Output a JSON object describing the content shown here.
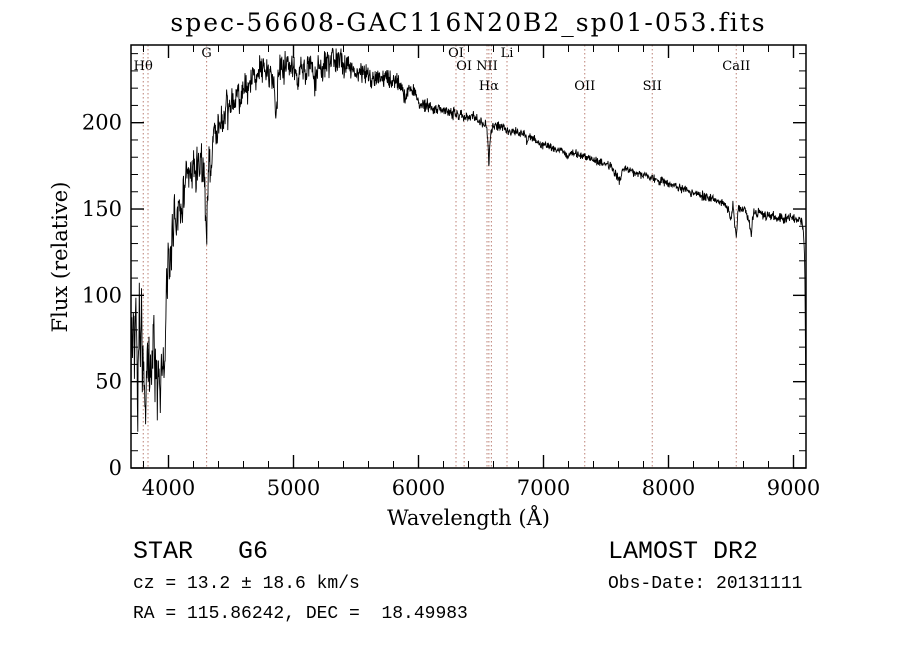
{
  "title": "spec-56608-GAC116N20B2_sp01-053.fits",
  "footer": {
    "class_label": "STAR   G6",
    "survey": "LAMOST DR2",
    "cz": "cz = 13.2 ± 18.6 km/s",
    "obs_date": "Obs-Date: 20131111",
    "coords": "RA = 115.86242, DEC =  18.49983"
  },
  "chart_data": {
    "type": "line",
    "title": "spec-56608-GAC116N20B2_sp01-053.fits",
    "xlabel": "Wavelength (Å)",
    "ylabel": "Flux (relative)",
    "xlim": [
      3700,
      9100
    ],
    "ylim": [
      0,
      245
    ],
    "x_ticks": [
      4000,
      5000,
      6000,
      7000,
      8000,
      9000
    ],
    "y_ticks": [
      0,
      50,
      100,
      150,
      200
    ],
    "x_minor_step": 200,
    "y_minor_step": 10,
    "grid": false,
    "legend": "none",
    "line_color": "#000000",
    "marker_line_color": "#bc8075",
    "spectral_lines": [
      {
        "label": "Hθ",
        "wavelength": 3798,
        "row": 1
      },
      {
        "label": "",
        "wavelength": 3836,
        "row": 1
      },
      {
        "label": "G",
        "wavelength": 4305,
        "row": 0
      },
      {
        "label": "OI",
        "wavelength": 6300,
        "row": 0
      },
      {
        "label": "OI",
        "wavelength": 6365,
        "row": 1
      },
      {
        "label": "NII",
        "wavelength": 6548,
        "row": 1
      },
      {
        "label": "Hα",
        "wavelength": 6563,
        "row": 2
      },
      {
        "label": "",
        "wavelength": 6583,
        "row": 1
      },
      {
        "label": "Li",
        "wavelength": 6708,
        "row": 0
      },
      {
        "label": "OII",
        "wavelength": 7330,
        "row": 2
      },
      {
        "label": "SII",
        "wavelength": 7870,
        "row": 2
      },
      {
        "label": "CaII",
        "wavelength": 8542,
        "row": 1
      }
    ],
    "series": [
      {
        "name": "flux",
        "anchors": [
          [
            3700,
            30
          ],
          [
            3706,
            95
          ],
          [
            3712,
            55
          ],
          [
            3720,
            100
          ],
          [
            3728,
            60
          ],
          [
            3736,
            108
          ],
          [
            3744,
            85
          ],
          [
            3752,
            35
          ],
          [
            3760,
            70
          ],
          [
            3768,
            100
          ],
          [
            3776,
            60
          ],
          [
            3784,
            95
          ],
          [
            3792,
            55
          ],
          [
            3800,
            62
          ],
          [
            3808,
            40
          ],
          [
            3816,
            20
          ],
          [
            3824,
            60
          ],
          [
            3832,
            52
          ],
          [
            3840,
            68
          ],
          [
            3850,
            48
          ],
          [
            3860,
            62
          ],
          [
            3870,
            55
          ],
          [
            3880,
            88
          ],
          [
            3890,
            52
          ],
          [
            3900,
            68
          ],
          [
            3910,
            42
          ],
          [
            3920,
            62
          ],
          [
            3933,
            38
          ],
          [
            3944,
            72
          ],
          [
            3955,
            60
          ],
          [
            3968,
            48
          ],
          [
            3980,
            92
          ],
          [
            3990,
            112
          ],
          [
            4000,
            118
          ],
          [
            4010,
            105
          ],
          [
            4020,
            130
          ],
          [
            4030,
            132
          ],
          [
            4045,
            150
          ],
          [
            4060,
            142
          ],
          [
            4075,
            152
          ],
          [
            4090,
            158
          ],
          [
            4101,
            138
          ],
          [
            4115,
            162
          ],
          [
            4130,
            158
          ],
          [
            4145,
            172
          ],
          [
            4160,
            162
          ],
          [
            4175,
            172
          ],
          [
            4190,
            165
          ],
          [
            4200,
            178
          ],
          [
            4215,
            168
          ],
          [
            4230,
            180
          ],
          [
            4245,
            172
          ],
          [
            4260,
            182
          ],
          [
            4275,
            172
          ],
          [
            4290,
            168
          ],
          [
            4302,
            126
          ],
          [
            4312,
            158
          ],
          [
            4325,
            182
          ],
          [
            4340,
            168
          ],
          [
            4355,
            192
          ],
          [
            4370,
            198
          ],
          [
            4385,
            192
          ],
          [
            4400,
            198
          ],
          [
            4420,
            202
          ],
          [
            4440,
            198
          ],
          [
            4460,
            208
          ],
          [
            4480,
            204
          ],
          [
            4500,
            214
          ],
          [
            4525,
            208
          ],
          [
            4550,
            218
          ],
          [
            4575,
            214
          ],
          [
            4600,
            220
          ],
          [
            4630,
            216
          ],
          [
            4660,
            224
          ],
          [
            4690,
            228
          ],
          [
            4720,
            230
          ],
          [
            4750,
            232
          ],
          [
            4780,
            228
          ],
          [
            4810,
            230
          ],
          [
            4840,
            224
          ],
          [
            4861,
            206
          ],
          [
            4880,
            226
          ],
          [
            4900,
            234
          ],
          [
            4925,
            230
          ],
          [
            4950,
            236
          ],
          [
            4975,
            232
          ],
          [
            5000,
            230
          ],
          [
            5030,
            226
          ],
          [
            5060,
            232
          ],
          [
            5090,
            228
          ],
          [
            5120,
            234
          ],
          [
            5150,
            230
          ],
          [
            5170,
            222
          ],
          [
            5200,
            234
          ],
          [
            5230,
            230
          ],
          [
            5260,
            236
          ],
          [
            5290,
            232
          ],
          [
            5320,
            238
          ],
          [
            5350,
            234
          ],
          [
            5380,
            238
          ],
          [
            5410,
            232
          ],
          [
            5440,
            236
          ],
          [
            5470,
            230
          ],
          [
            5500,
            230
          ],
          [
            5540,
            228
          ],
          [
            5580,
            229
          ],
          [
            5620,
            226
          ],
          [
            5660,
            227
          ],
          [
            5700,
            225
          ],
          [
            5740,
            226
          ],
          [
            5780,
            224
          ],
          [
            5820,
            224
          ],
          [
            5860,
            222
          ],
          [
            5893,
            214
          ],
          [
            5920,
            220
          ],
          [
            5960,
            218
          ],
          [
            6000,
            212
          ],
          [
            6050,
            210
          ],
          [
            6100,
            209
          ],
          [
            6150,
            208
          ],
          [
            6200,
            207
          ],
          [
            6250,
            206
          ],
          [
            6300,
            205
          ],
          [
            6350,
            204
          ],
          [
            6400,
            204
          ],
          [
            6450,
            203
          ],
          [
            6495,
            201
          ],
          [
            6530,
            199
          ],
          [
            6548,
            196
          ],
          [
            6563,
            177
          ],
          [
            6578,
            195
          ],
          [
            6600,
            198
          ],
          [
            6640,
            198
          ],
          [
            6680,
            197
          ],
          [
            6708,
            195
          ],
          [
            6730,
            196
          ],
          [
            6770,
            195
          ],
          [
            6810,
            194
          ],
          [
            6850,
            193
          ],
          [
            6867,
            188
          ],
          [
            6890,
            192
          ],
          [
            6930,
            190
          ],
          [
            6970,
            188
          ],
          [
            7000,
            187
          ],
          [
            7050,
            186
          ],
          [
            7100,
            185
          ],
          [
            7150,
            184
          ],
          [
            7186,
            180
          ],
          [
            7220,
            183
          ],
          [
            7260,
            182
          ],
          [
            7300,
            181
          ],
          [
            7340,
            180
          ],
          [
            7380,
            179
          ],
          [
            7420,
            178
          ],
          [
            7460,
            177
          ],
          [
            7500,
            176
          ],
          [
            7540,
            175
          ],
          [
            7580,
            170
          ],
          [
            7605,
            166
          ],
          [
            7630,
            172
          ],
          [
            7660,
            173
          ],
          [
            7700,
            172
          ],
          [
            7740,
            171
          ],
          [
            7780,
            170
          ],
          [
            7820,
            169
          ],
          [
            7860,
            168
          ],
          [
            7900,
            167
          ],
          [
            7940,
            166
          ],
          [
            7980,
            165
          ],
          [
            8020,
            164
          ],
          [
            8060,
            163
          ],
          [
            8100,
            162
          ],
          [
            8140,
            161
          ],
          [
            8180,
            160
          ],
          [
            8220,
            159
          ],
          [
            8260,
            158
          ],
          [
            8300,
            157
          ],
          [
            8340,
            156
          ],
          [
            8380,
            155
          ],
          [
            8420,
            154
          ],
          [
            8460,
            153
          ],
          [
            8498,
            144
          ],
          [
            8515,
            152
          ],
          [
            8542,
            133
          ],
          [
            8558,
            151
          ],
          [
            8590,
            150
          ],
          [
            8620,
            149
          ],
          [
            8662,
            136
          ],
          [
            8680,
            148
          ],
          [
            8710,
            148
          ],
          [
            8750,
            147
          ],
          [
            8790,
            146
          ],
          [
            8830,
            146
          ],
          [
            8870,
            145
          ],
          [
            8910,
            145
          ],
          [
            8950,
            144
          ],
          [
            8990,
            145
          ],
          [
            9020,
            144
          ],
          [
            9050,
            143
          ],
          [
            9075,
            141
          ],
          [
            9090,
            120
          ],
          [
            9100,
            28
          ]
        ]
      }
    ],
    "noise_profile": [
      [
        3700,
        26
      ],
      [
        3900,
        22
      ],
      [
        4100,
        16
      ],
      [
        4400,
        13
      ],
      [
        4800,
        11
      ],
      [
        5200,
        10
      ],
      [
        5600,
        7
      ],
      [
        6000,
        5
      ],
      [
        6400,
        4
      ],
      [
        7000,
        3
      ],
      [
        7600,
        3
      ],
      [
        8200,
        3.5
      ],
      [
        8800,
        3.5
      ],
      [
        9100,
        4
      ]
    ]
  }
}
